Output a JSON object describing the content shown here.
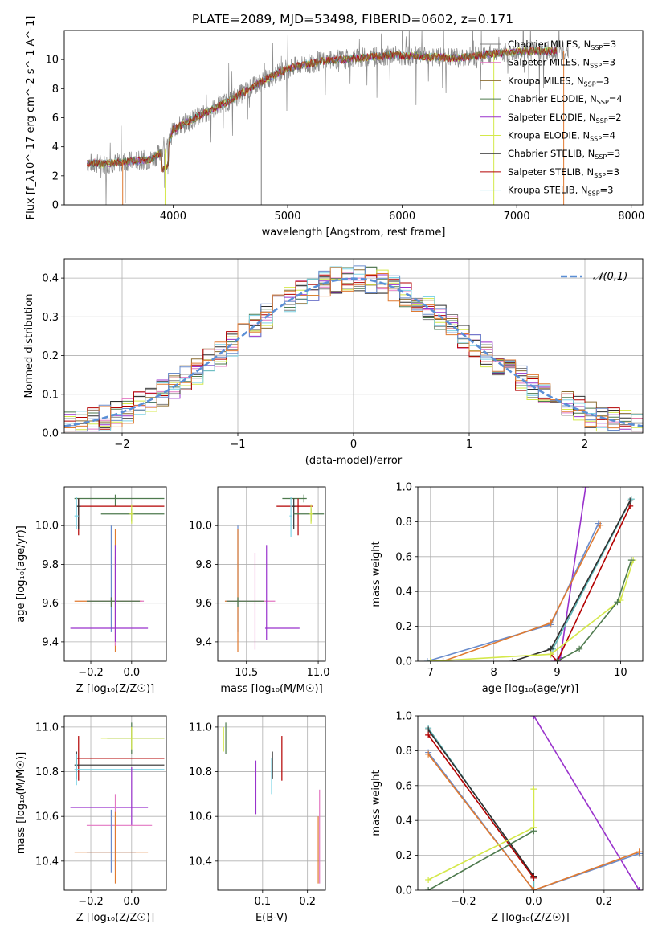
{
  "figure_title": "PLATE=2089, MJD=53498, FIBERID=0602, z=0.171",
  "colors": {
    "Chabrier MILES": "#808080",
    "Salpeter MILES": "#e377c2",
    "Kroupa MILES": "#8c6d31",
    "Chabrier ELODIE": "#4e7a4e",
    "Salpeter ELODIE": "#9932cc",
    "Kroupa ELODIE": "#d4e84a",
    "Chabrier STELIB": "#2f2f2f",
    "Salpeter STELIB": "#b30000",
    "Kroupa STELIB": "#7fd4e6",
    "blue": "#6a8ccc",
    "orange": "#e07a30",
    "teal": "#5fb8b8",
    "normal": "#5b8fd6"
  },
  "chart_data": [
    {
      "id": "spectrum",
      "type": "line",
      "title": "PLATE=2089, MJD=53498, FIBERID=0602, z=0.171",
      "xlabel": "wavelength [Angstrom, rest frame]",
      "ylabel": "Flux [f_λ10^-17 erg cm^-2 s^-1 A^-1]",
      "xlim": [
        3050,
        8100
      ],
      "ylim": [
        0,
        12
      ],
      "xticks": [
        "4000",
        "5000",
        "6000",
        "7000",
        "8000"
      ],
      "yticks": [
        "0",
        "2",
        "4",
        "6",
        "8",
        "10"
      ],
      "continuum": {
        "x": [
          3250,
          3400,
          3600,
          3800,
          3950,
          4000,
          4200,
          4500,
          4800,
          5000,
          5300,
          5600,
          5900,
          6200,
          6500,
          6800,
          7100,
          7300
        ],
        "y": [
          2.9,
          2.8,
          3.0,
          3.1,
          3.9,
          5.2,
          6.0,
          7.2,
          8.6,
          9.4,
          9.9,
          10.1,
          10.3,
          10.2,
          10.1,
          10.4,
          10.6,
          10.6
        ]
      },
      "legend": [
        {
          "name": "Chabrier MILES",
          "nssp": "3"
        },
        {
          "name": "Salpeter MILES",
          "nssp": "3"
        },
        {
          "name": "Kroupa MILES",
          "nssp": "3"
        },
        {
          "name": "Chabrier ELODIE",
          "nssp": "4"
        },
        {
          "name": "Salpeter ELODIE",
          "nssp": "2"
        },
        {
          "name": "Kroupa ELODIE",
          "nssp": "4"
        },
        {
          "name": "Chabrier STELIB",
          "nssp": "3"
        },
        {
          "name": "Salpeter STELIB",
          "nssp": "3"
        },
        {
          "name": "Kroupa STELIB",
          "nssp": "3"
        }
      ],
      "legend_placement": "top-right"
    },
    {
      "id": "residuals",
      "type": "line",
      "xlabel": "(data-model)/error",
      "ylabel": "Normed distribution",
      "xlim": [
        -2.5,
        2.5
      ],
      "ylim": [
        0,
        0.45
      ],
      "xticks": [
        "−2",
        "−1",
        "0",
        "1",
        "2"
      ],
      "yticks": [
        "0.0",
        "0.1",
        "0.2",
        "0.3",
        "0.4"
      ],
      "grid": true,
      "legend": [
        {
          "name": "𝒩(0,1)"
        }
      ],
      "legend_placement": "top-right"
    },
    {
      "id": "age_vs_Z",
      "type": "scatter",
      "xlabel": "Z [log₁₀(Z/Z☉)]",
      "ylabel": "age  [log₁₀(age/yr)]",
      "xlim": [
        -0.33,
        0.17
      ],
      "ylim": [
        9.3,
        10.2
      ],
      "xticks": [
        "−0.2",
        "0.0"
      ],
      "yticks": [
        "9.4",
        "9.6",
        "9.8",
        "10.0"
      ],
      "grid": true,
      "errorbars": [
        {
          "c": "Chabrier ELODIE",
          "x": -0.08,
          "xl": -0.28,
          "xh": 0.16,
          "y": 10.14,
          "yl": 10.1,
          "yh": 10.16
        },
        {
          "c": "Salpeter STELIB",
          "x": -0.26,
          "xl": -0.27,
          "xh": 0.16,
          "y": 10.1,
          "yl": 9.95,
          "yh": 10.14
        },
        {
          "c": "Chabrier STELIB",
          "x": -0.26,
          "xl": -0.27,
          "xh": -0.25,
          "y": 10.1,
          "yl": 9.98,
          "yh": 10.14
        },
        {
          "c": "Chabrier ELODIE",
          "x": 0.0,
          "xl": -0.15,
          "xh": 0.16,
          "y": 10.06,
          "yl": 10.02,
          "yh": 10.09
        },
        {
          "c": "Kroupa ELODIE",
          "x": 0.0,
          "xl": -0.01,
          "xh": 0.01,
          "y": 10.06,
          "yl": 10.01,
          "yh": 10.11
        },
        {
          "c": "Kroupa STELIB",
          "x": -0.27,
          "xl": -0.28,
          "xh": -0.26,
          "y": 10.05,
          "yl": 9.98,
          "yh": 10.15
        },
        {
          "c": "blue",
          "x": -0.1,
          "xl": -0.1,
          "xh": -0.1,
          "y": 9.61,
          "yl": 9.45,
          "yh": 10.0
        },
        {
          "c": "orange",
          "x": -0.08,
          "xl": -0.28,
          "xh": 0.05,
          "y": 9.61,
          "yl": 9.35,
          "yh": 9.98
        },
        {
          "c": "Salpeter MILES",
          "x": -0.08,
          "xl": -0.22,
          "xh": 0.06,
          "y": 9.61,
          "yl": 9.38,
          "yh": 9.84
        },
        {
          "c": "Chabrier ELODIE",
          "x": -0.1,
          "xl": -0.22,
          "xh": 0.04,
          "y": 9.61,
          "yl": 9.58,
          "yh": 9.63
        },
        {
          "c": "Salpeter ELODIE",
          "x": -0.08,
          "xl": -0.3,
          "xh": 0.08,
          "y": 9.47,
          "yl": 9.4,
          "yh": 9.9
        }
      ]
    },
    {
      "id": "age_vs_mass",
      "type": "scatter",
      "xlabel": "mass [log₁₀(M/M☉)]",
      "ylabel": "",
      "xlim": [
        10.3,
        11.05
      ],
      "ylim": [
        9.3,
        10.2
      ],
      "xticks": [
        "10.5",
        "11.0"
      ],
      "yticks": [
        "9.4",
        "9.6",
        "9.8",
        "10.0"
      ],
      "grid": true,
      "errorbars": [
        {
          "c": "Chabrier ELODIE",
          "x": 10.9,
          "xl": 10.75,
          "xh": 10.92,
          "y": 10.14,
          "yl": 10.12,
          "yh": 10.16
        },
        {
          "c": "Salpeter STELIB",
          "x": 10.86,
          "xl": 10.71,
          "xh": 10.96,
          "y": 10.1,
          "yl": 9.95,
          "yh": 10.14
        },
        {
          "c": "Chabrier STELIB",
          "x": 10.83,
          "xl": 10.82,
          "xh": 10.84,
          "y": 10.1,
          "yl": 9.98,
          "yh": 10.14
        },
        {
          "c": "Chabrier ELODIE",
          "x": 10.95,
          "xl": 10.83,
          "xh": 11.04,
          "y": 10.06,
          "yl": 10.02,
          "yh": 10.09
        },
        {
          "c": "Kroupa ELODIE",
          "x": 10.95,
          "xl": 10.94,
          "xh": 10.96,
          "y": 10.06,
          "yl": 10.01,
          "yh": 10.11
        },
        {
          "c": "Kroupa STELIB",
          "x": 10.81,
          "xl": 10.8,
          "xh": 10.82,
          "y": 10.05,
          "yl": 9.94,
          "yh": 10.15
        },
        {
          "c": "blue",
          "x": 10.44,
          "xl": 10.43,
          "xh": 10.45,
          "y": 9.61,
          "yl": 9.45,
          "yh": 10.0
        },
        {
          "c": "orange",
          "x": 10.44,
          "xl": 10.35,
          "xh": 10.46,
          "y": 9.61,
          "yl": 9.35,
          "yh": 9.98
        },
        {
          "c": "Salpeter MILES",
          "x": 10.56,
          "xl": 10.36,
          "xh": 10.7,
          "y": 9.61,
          "yl": 9.36,
          "yh": 9.86
        },
        {
          "c": "Chabrier ELODIE",
          "x": 10.44,
          "xl": 10.36,
          "xh": 10.62,
          "y": 9.61,
          "yl": 9.58,
          "yh": 9.63
        },
        {
          "c": "Salpeter ELODIE",
          "x": 10.64,
          "xl": 10.63,
          "xh": 10.87,
          "y": 9.47,
          "yl": 9.41,
          "yh": 9.9
        }
      ]
    },
    {
      "id": "massweight_vs_age",
      "type": "line",
      "xlabel": "age  [log₁₀(age/yr)]",
      "ylabel": "mass weight",
      "xlim": [
        6.8,
        10.35
      ],
      "ylim": [
        0,
        1
      ],
      "xticks": [
        "7",
        "8",
        "9",
        "10"
      ],
      "yticks": [
        "0.0",
        "0.2",
        "0.4",
        "0.6",
        "0.8",
        "1.0"
      ],
      "grid": true,
      "series": [
        {
          "c": "Salpeter ELODIE",
          "x": [
            8.95,
            9.05,
            9.45
          ],
          "y": [
            0.0,
            0.02,
            1.0
          ]
        },
        {
          "c": "blue",
          "x": [
            6.95,
            8.9,
            9.65
          ],
          "y": [
            0.0,
            0.21,
            0.79
          ]
        },
        {
          "c": "orange",
          "x": [
            7.2,
            8.9,
            9.68
          ],
          "y": [
            0.0,
            0.22,
            0.78
          ]
        },
        {
          "c": "Salpeter STELIB",
          "x": [
            8.9,
            9.0,
            10.15
          ],
          "y": [
            0.04,
            0.0,
            0.89
          ]
        },
        {
          "c": "teal",
          "x": [
            8.9,
            8.93,
            10.17
          ],
          "y": [
            0.07,
            0.07,
            0.93
          ]
        },
        {
          "c": "Chabrier STELIB",
          "x": [
            8.3,
            8.9,
            10.15
          ],
          "y": [
            0.0,
            0.07,
            0.92
          ]
        },
        {
          "c": "Kroupa ELODIE",
          "x": [
            7.0,
            8.9,
            10.0,
            10.2
          ],
          "y": [
            0.0,
            0.04,
            0.35,
            0.58
          ]
        },
        {
          "c": "Chabrier ELODIE",
          "x": [
            9.0,
            9.35,
            9.95,
            10.17
          ],
          "y": [
            0.0,
            0.07,
            0.34,
            0.58
          ]
        }
      ]
    },
    {
      "id": "mass_vs_Z",
      "type": "scatter",
      "xlabel": "Z [log₁₀(Z/Z☉)]",
      "ylabel": "mass [log₁₀(M/M☉)]",
      "xlim": [
        -0.33,
        0.17
      ],
      "ylim": [
        10.27,
        11.05
      ],
      "xticks": [
        "−0.2",
        "0.0"
      ],
      "yticks": [
        "10.4",
        "10.6",
        "10.8",
        "11.0"
      ],
      "grid": true,
      "errorbars": [
        {
          "c": "Chabrier ELODIE",
          "x": 0.0,
          "xl": -0.12,
          "xh": 0.16,
          "y": 10.95,
          "yl": 10.88,
          "yh": 11.02
        },
        {
          "c": "Kroupa ELODIE",
          "x": 0.0,
          "xl": -0.15,
          "xh": 0.16,
          "y": 10.95,
          "yl": 10.9,
          "yh": 11.0
        },
        {
          "c": "Salpeter STELIB",
          "x": -0.26,
          "xl": -0.27,
          "xh": 0.16,
          "y": 10.86,
          "yl": 10.76,
          "yh": 10.96
        },
        {
          "c": "Chabrier STELIB",
          "x": -0.27,
          "xl": -0.28,
          "xh": 0.16,
          "y": 10.83,
          "yl": 10.77,
          "yh": 10.89
        },
        {
          "c": "Kroupa STELIB",
          "x": -0.27,
          "xl": -0.28,
          "xh": 0.16,
          "y": 10.81,
          "yl": 10.74,
          "yh": 10.88
        },
        {
          "c": "Salpeter ELODIE",
          "x": 0.0,
          "xl": -0.3,
          "xh": 0.08,
          "y": 10.64,
          "yl": 10.56,
          "yh": 10.82
        },
        {
          "c": "Salpeter MILES",
          "x": -0.08,
          "xl": -0.22,
          "xh": 0.1,
          "y": 10.56,
          "yl": 10.36,
          "yh": 10.7
        },
        {
          "c": "blue",
          "x": -0.1,
          "xl": -0.22,
          "xh": 0.02,
          "y": 10.44,
          "yl": 10.35,
          "yh": 10.63
        },
        {
          "c": "orange",
          "x": -0.08,
          "xl": -0.28,
          "xh": 0.08,
          "y": 10.44,
          "yl": 10.3,
          "yh": 10.62
        }
      ]
    },
    {
      "id": "mass_vs_EBV",
      "type": "scatter",
      "xlabel": "E(B-V)",
      "ylabel": "",
      "xlim": [
        0.0,
        0.24
      ],
      "ylim": [
        10.27,
        11.05
      ],
      "xticks": [
        "0.1",
        "0.2"
      ],
      "yticks": [
        "10.4",
        "10.6",
        "10.8",
        "11.0"
      ],
      "grid": true,
      "errorbars": [
        {
          "c": "Chabrier ELODIE",
          "x": 0.018,
          "xl": 0.018,
          "xh": 0.018,
          "y": 10.95,
          "yl": 10.88,
          "yh": 11.02
        },
        {
          "c": "Kroupa ELODIE",
          "x": 0.013,
          "xl": 0.013,
          "xh": 0.013,
          "y": 10.95,
          "yl": 10.89,
          "yh": 11.0
        },
        {
          "c": "Salpeter STELIB",
          "x": 0.143,
          "xl": 0.143,
          "xh": 0.143,
          "y": 10.86,
          "yl": 10.76,
          "yh": 10.96
        },
        {
          "c": "Chabrier STELIB",
          "x": 0.122,
          "xl": 0.122,
          "xh": 0.122,
          "y": 10.83,
          "yl": 10.77,
          "yh": 10.89
        },
        {
          "c": "Kroupa STELIB",
          "x": 0.12,
          "xl": 0.12,
          "xh": 0.12,
          "y": 10.8,
          "yl": 10.7,
          "yh": 10.86
        },
        {
          "c": "Salpeter ELODIE",
          "x": 0.085,
          "xl": 0.085,
          "xh": 0.085,
          "y": 10.72,
          "yl": 10.61,
          "yh": 10.85
        },
        {
          "c": "Salpeter MILES",
          "x": 0.227,
          "xl": 0.227,
          "xh": 0.227,
          "y": 10.5,
          "yl": 10.3,
          "yh": 10.72
        },
        {
          "c": "orange",
          "x": 0.224,
          "xl": 0.224,
          "xh": 0.224,
          "y": 10.45,
          "yl": 10.3,
          "yh": 10.6
        }
      ]
    },
    {
      "id": "massweight_vs_Z",
      "type": "line",
      "xlabel": "Z [log₁₀(Z/Z☉)]",
      "ylabel": "mass weight",
      "xlim": [
        -0.33,
        0.31
      ],
      "ylim": [
        0,
        1
      ],
      "xticks": [
        "−0.2",
        "0.0",
        "0.2"
      ],
      "yticks": [
        "0.0",
        "0.2",
        "0.4",
        "0.6",
        "0.8",
        "1.0"
      ],
      "grid": true,
      "series": [
        {
          "c": "Salpeter ELODIE",
          "x": [
            0.0,
            0.3
          ],
          "y": [
            1.0,
            0.0
          ]
        },
        {
          "c": "teal",
          "x": [
            -0.3,
            0.0,
            0.0
          ],
          "y": [
            0.93,
            0.07,
            0.0
          ]
        },
        {
          "c": "Chabrier STELIB",
          "x": [
            -0.3,
            0.0
          ],
          "y": [
            0.92,
            0.08
          ]
        },
        {
          "c": "Salpeter STELIB",
          "x": [
            -0.3,
            0.0
          ],
          "y": [
            0.89,
            0.07
          ]
        },
        {
          "c": "blue",
          "x": [
            -0.3,
            0.0,
            0.3
          ],
          "y": [
            0.79,
            0.0,
            0.21
          ]
        },
        {
          "c": "orange",
          "x": [
            -0.3,
            0.0,
            0.3
          ],
          "y": [
            0.78,
            0.0,
            0.22
          ]
        },
        {
          "c": "Kroupa ELODIE",
          "x": [
            -0.3,
            0.0,
            0.0
          ],
          "y": [
            0.06,
            0.36,
            0.58
          ]
        },
        {
          "c": "Chabrier ELODIE",
          "x": [
            -0.3,
            0.0
          ],
          "y": [
            0.0,
            0.34
          ]
        }
      ]
    }
  ]
}
